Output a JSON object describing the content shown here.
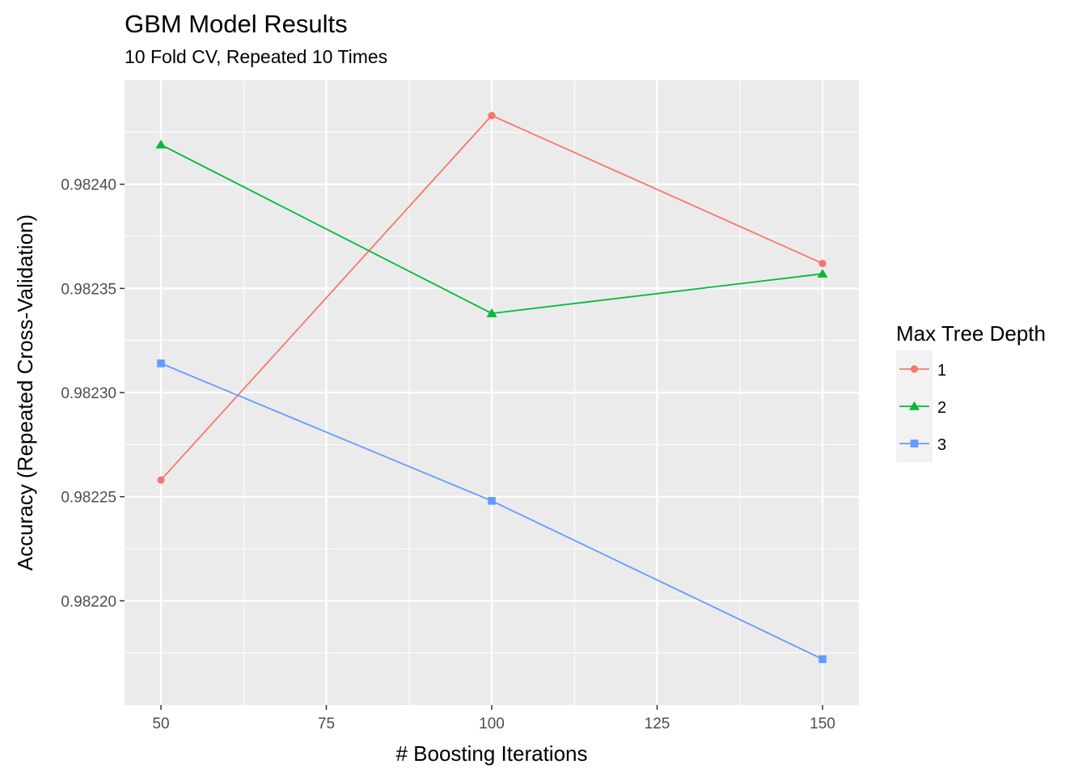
{
  "chart_data": {
    "type": "line",
    "title": "GBM Model Results",
    "subtitle": "10 Fold CV, Repeated 10 Times",
    "xlabel": "# Boosting Iterations",
    "ylabel": "Accuracy (Repeated Cross-Validation)",
    "x": [
      50,
      100,
      150
    ],
    "xlim": [
      44.5,
      155.5
    ],
    "ylim": [
      0.98215,
      0.98245
    ],
    "x_ticks": [
      50,
      75,
      100,
      125,
      150
    ],
    "x_tick_labels": [
      "50",
      "75",
      "100",
      "125",
      "150"
    ],
    "y_ticks": [
      0.9822,
      0.98225,
      0.9823,
      0.98235,
      0.9824
    ],
    "y_tick_labels": [
      "0.98220",
      "0.98225",
      "0.98230",
      "0.98235",
      "0.98240"
    ],
    "grid": true,
    "legend": {
      "title": "Max Tree Depth",
      "position": "right"
    },
    "series": [
      {
        "name": "1",
        "values": [
          0.982258,
          0.982433,
          0.982362
        ],
        "color": "#F8766D",
        "marker": "circle"
      },
      {
        "name": "2",
        "values": [
          0.982419,
          0.982338,
          0.982357
        ],
        "color": "#00BA38",
        "marker": "triangle"
      },
      {
        "name": "3",
        "values": [
          0.982314,
          0.982248,
          0.982172
        ],
        "color": "#619CFF",
        "marker": "square"
      }
    ]
  }
}
